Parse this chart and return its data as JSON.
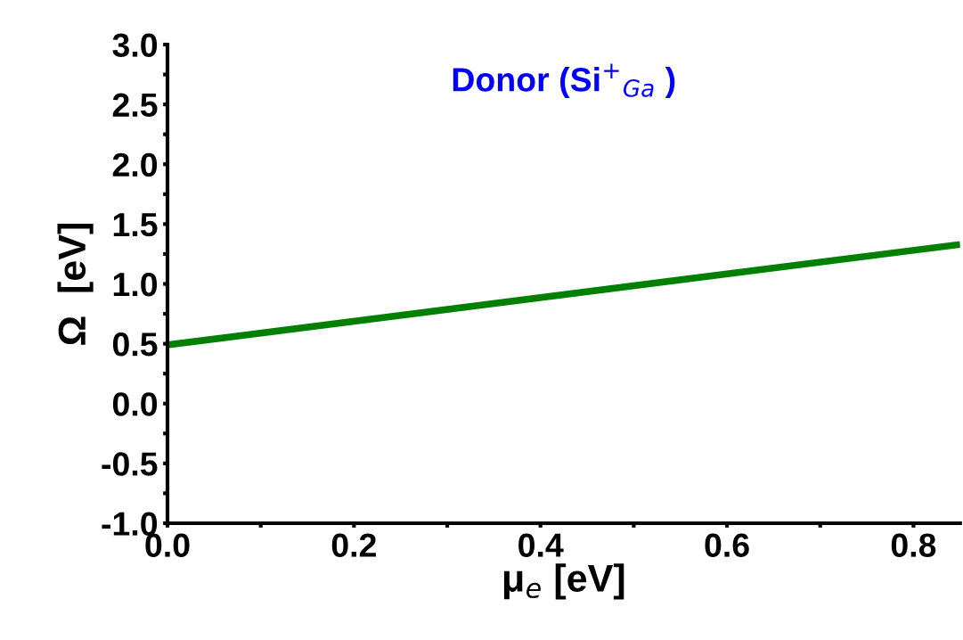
{
  "chart_data": {
    "type": "line",
    "title": "Donor (Si$^{+}$$_{Ga}$ )",
    "xlabel": "μ$_{e}$ [eV]",
    "ylabel": "Ω  [eV]",
    "x": [
      0,
      0.85
    ],
    "series": [
      {
        "color": "#008000",
        "values": [
          0.49,
          1.33
        ]
      }
    ],
    "xlim": [
      0,
      0.85
    ],
    "ylim": [
      -1.0,
      3.0
    ],
    "xticks": [
      {
        "value": 0,
        "label": "0.0"
      },
      {
        "value": 0.1,
        "label": null
      },
      {
        "value": 0.2,
        "label": "0.2"
      },
      {
        "value": 0.3,
        "label": null
      },
      {
        "value": 0.4,
        "label": "0.4"
      },
      {
        "value": 0.5,
        "label": null
      },
      {
        "value": 0.6,
        "label": "0.6"
      },
      {
        "value": 0.7,
        "label": null
      },
      {
        "value": 0.8,
        "label": "0.8"
      }
    ],
    "yticks": [
      {
        "value": -1.0,
        "label": "-1.0"
      },
      {
        "value": -0.75,
        "label": null
      },
      {
        "value": -0.5,
        "label": "-0.5"
      },
      {
        "value": -0.25,
        "label": null
      },
      {
        "value": 0,
        "label": "0.0"
      },
      {
        "value": 0.25,
        "label": null
      },
      {
        "value": 0.5,
        "label": "0.5"
      },
      {
        "value": 0.75,
        "label": null
      },
      {
        "value": 1.0,
        "label": "1.0"
      },
      {
        "value": 1.25,
        "label": null
      },
      {
        "value": 1.5,
        "label": "1.5"
      },
      {
        "value": 1.75,
        "label": null
      },
      {
        "value": 2.0,
        "label": "2.0"
      },
      {
        "value": 2.25,
        "label": null
      },
      {
        "value": 2.5,
        "label": "2.5"
      },
      {
        "value": 2.75,
        "label": null
      },
      {
        "value": 3.0,
        "label": "3.0"
      }
    ],
    "grid": false,
    "legend": false
  }
}
